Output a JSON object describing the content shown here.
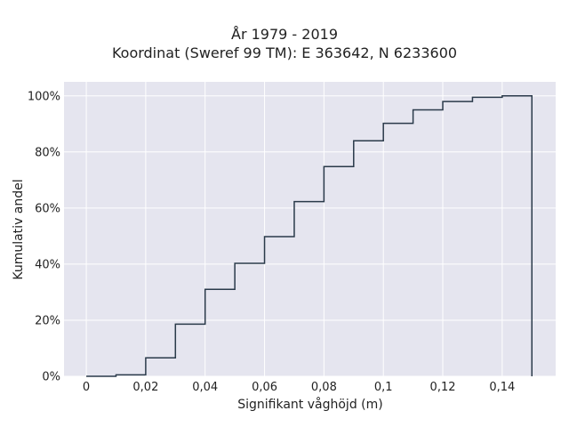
{
  "chart_data": {
    "type": "line",
    "step": true,
    "title": "År 1979 - 2019",
    "subtitle": "Koordinat (Sweref 99 TM): E 363642, N 6233600",
    "xlabel": "Signifikant våghöjd (m)",
    "ylabel": "Kumulativ andel",
    "x_ticks": [
      "0",
      "0,02",
      "0,04",
      "0,06",
      "0,08",
      "0,1",
      "0,12",
      "0,14"
    ],
    "y_ticks": [
      "0%",
      "20%",
      "40%",
      "60%",
      "80%",
      "100%"
    ],
    "xlim": [
      -0.0075,
      0.158
    ],
    "ylim": [
      0,
      1.05
    ],
    "grid": true,
    "series": [
      {
        "bin_edges": [
          0,
          0.01,
          0.02,
          0.03,
          0.04,
          0.05,
          0.06,
          0.07,
          0.08,
          0.09,
          0.1,
          0.11,
          0.12,
          0.13,
          0.14,
          0.15
        ],
        "values": [
          0.0,
          0.005,
          0.066,
          0.186,
          0.31,
          0.403,
          0.498,
          0.623,
          0.748,
          0.84,
          0.902,
          0.95,
          0.98,
          0.995,
          1.0
        ],
        "color": "#2a3a4a"
      }
    ],
    "plot_background": "#e5e5ef",
    "grid_color": "#ffffff"
  }
}
